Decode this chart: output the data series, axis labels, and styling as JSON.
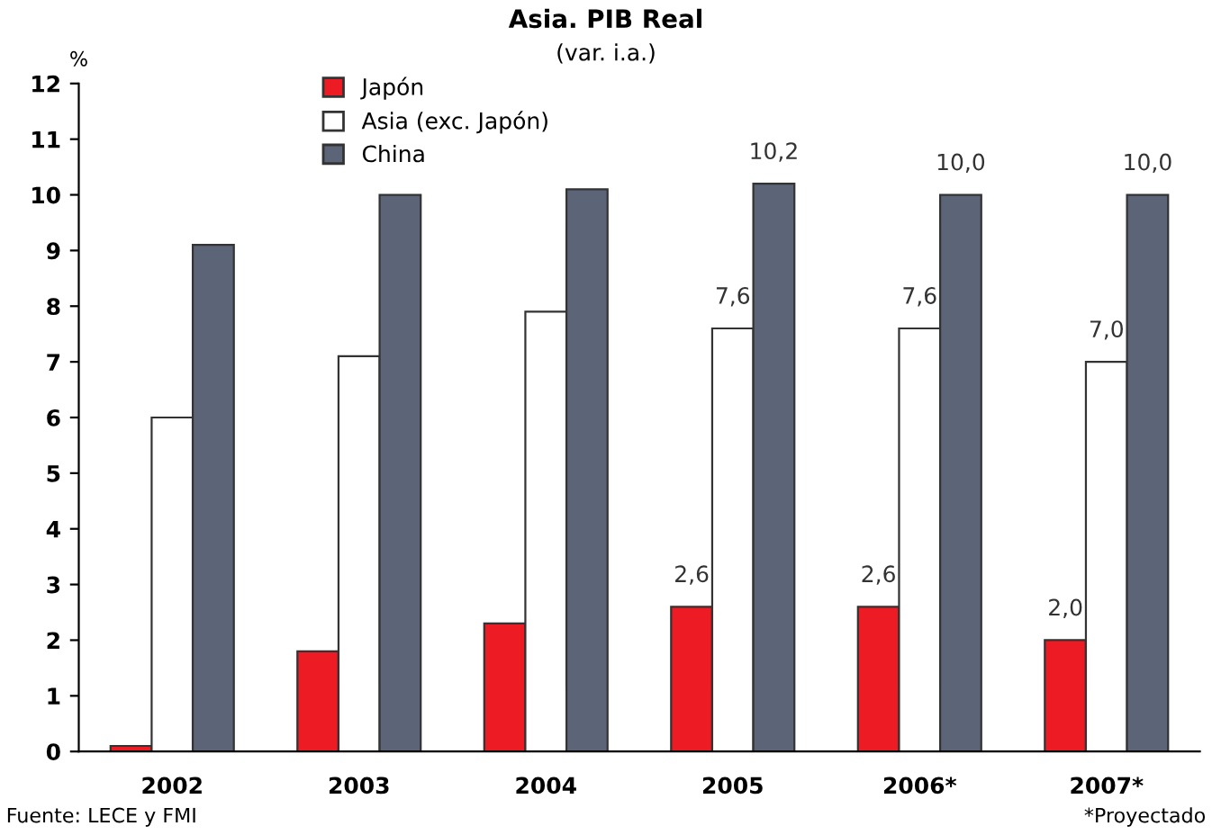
{
  "chart_data": {
    "type": "bar",
    "title": "Asia. PIB Real",
    "subtitle": "(var. i.a.)",
    "ylabel": "%",
    "categories": [
      "2002",
      "2003",
      "2004",
      "2005",
      "2006*",
      "2007*"
    ],
    "series": [
      {
        "name": "Japón",
        "color": "#ed1c24",
        "values": [
          0.1,
          1.8,
          2.3,
          2.6,
          2.6,
          2.0
        ],
        "value_labels": [
          null,
          null,
          null,
          "2,6",
          "2,6",
          "2,0"
        ]
      },
      {
        "name": "Asia (exc. Japón)",
        "color": "#ffffff",
        "values": [
          6.0,
          7.1,
          7.9,
          7.6,
          7.6,
          7.0
        ],
        "value_labels": [
          null,
          null,
          null,
          "7,6",
          "7,6",
          "7,0"
        ]
      },
      {
        "name": "China",
        "color": "#5b6577",
        "values": [
          9.1,
          10.0,
          10.1,
          10.2,
          10.0,
          10.0
        ],
        "value_labels": [
          null,
          null,
          null,
          "10,2",
          "10,0",
          "10,0"
        ]
      }
    ],
    "ylim": [
      0,
      12
    ],
    "yticks": [
      0,
      1,
      2,
      3,
      4,
      5,
      6,
      7,
      8,
      9,
      10,
      11,
      12
    ],
    "grid": false,
    "legend": "top left",
    "annotations": [
      "Fuente: LECE y FMI",
      "*Proyectado"
    ]
  }
}
